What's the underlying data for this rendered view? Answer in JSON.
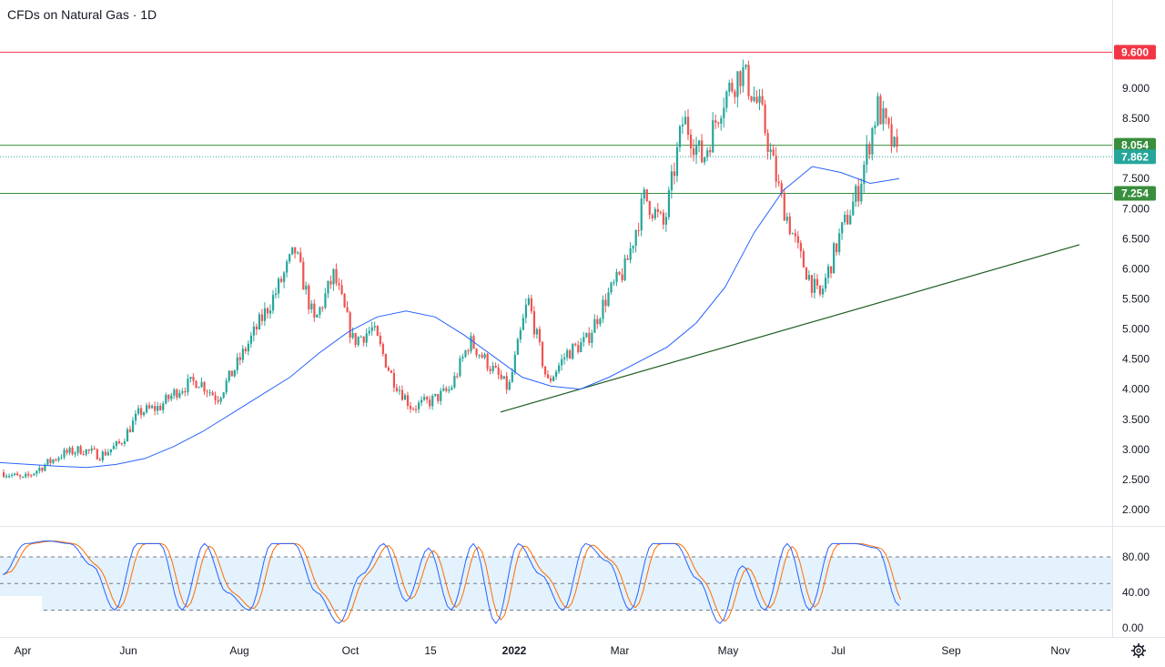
{
  "title": "CFDs on Natural Gas · 1D",
  "price_axis": {
    "ticks": [
      "9.000",
      "8.500",
      "7.500",
      "7.000",
      "6.500",
      "6.000",
      "5.500",
      "5.000",
      "4.500",
      "4.000",
      "3.500",
      "3.000",
      "2.500",
      "2.000"
    ],
    "tick_values": [
      9.0,
      8.5,
      7.5,
      7.0,
      6.5,
      6.0,
      5.5,
      5.0,
      4.5,
      4.0,
      3.5,
      3.0,
      2.5,
      2.0
    ]
  },
  "price_labels": [
    {
      "text": "9.600",
      "value": 9.6,
      "color": "#f23645"
    },
    {
      "text": "8.054",
      "value": 8.054,
      "color": "#388e3c"
    },
    {
      "text": "7.862",
      "value": 7.862,
      "color": "#26a69a"
    },
    {
      "text": "7.254",
      "value": 7.254,
      "color": "#388e3c"
    }
  ],
  "oscillator_axis": {
    "ticks": [
      "80.00",
      "40.00",
      "0.00"
    ],
    "tick_values": [
      80,
      40,
      0
    ],
    "band": [
      20,
      80
    ]
  },
  "time_axis": [
    "Apr",
    "Jun",
    "Aug",
    "Oct",
    "15",
    "2022",
    "Mar",
    "May",
    "Jul",
    "Sep",
    "Nov"
  ],
  "colors": {
    "up": "#26a69a",
    "down": "#ef5350",
    "ma": "#2962ff",
    "resistance": "#f23645",
    "support": "#388e3c",
    "trendline": "#1b5e20",
    "stoch_k": "#2962ff",
    "stoch_d": "#ff6d00",
    "band_fill": "#e3f2fd",
    "grid": "#e0e3eb",
    "axis_text": "#131722"
  },
  "chart_data": {
    "type": "candlestick",
    "instrument": "CFDs on Natural Gas",
    "interval": "1D",
    "ylim": [
      1.8,
      9.7
    ],
    "horizontal_levels": [
      {
        "value": 9.6,
        "color": "red"
      },
      {
        "value": 8.054,
        "color": "green"
      },
      {
        "value": 7.862,
        "color": "teal dotted"
      },
      {
        "value": 7.254,
        "color": "green"
      }
    ],
    "trendline": {
      "from": {
        "t": 0,
        "price": 3.62
      },
      "to": {
        "t": 1,
        "price": 6.4
      }
    },
    "close_series_approx": [
      {
        "t": "Mar",
        "v": 2.62
      },
      {
        "t": "Apr",
        "v": 2.5
      },
      {
        "t": "Apr",
        "v": 2.72
      },
      {
        "t": "May",
        "v": 2.92
      },
      {
        "t": "May",
        "v": 3.0
      },
      {
        "t": "Jun",
        "v": 2.9
      },
      {
        "t": "Jun",
        "v": 3.1
      },
      {
        "t": "Jul",
        "v": 3.62
      },
      {
        "t": "Jul",
        "v": 3.7
      },
      {
        "t": "Aug",
        "v": 4.0
      },
      {
        "t": "Aug",
        "v": 4.15
      },
      {
        "t": "Aug",
        "v": 3.85
      },
      {
        "t": "Sep",
        "v": 4.4
      },
      {
        "t": "Sep",
        "v": 5.0
      },
      {
        "t": "Sep",
        "v": 5.6
      },
      {
        "t": "Oct",
        "v": 6.3
      },
      {
        "t": "Oct",
        "v": 5.1
      },
      {
        "t": "Oct",
        "v": 5.9
      },
      {
        "t": "Nov",
        "v": 4.8
      },
      {
        "t": "Nov",
        "v": 5.0
      },
      {
        "t": "Nov",
        "v": 4.2
      },
      {
        "t": "Dec",
        "v": 3.7
      },
      {
        "t": "Dec",
        "v": 3.8
      },
      {
        "t": "2022",
        "v": 4.0
      },
      {
        "t": "Jan",
        "v": 4.8
      },
      {
        "t": "Jan",
        "v": 4.4
      },
      {
        "t": "Feb",
        "v": 4.0
      },
      {
        "t": "Feb",
        "v": 5.5
      },
      {
        "t": "Feb",
        "v": 4.1
      },
      {
        "t": "Mar",
        "v": 4.6
      },
      {
        "t": "Mar",
        "v": 4.8
      },
      {
        "t": "Mar",
        "v": 5.5
      },
      {
        "t": "Apr",
        "v": 6.0
      },
      {
        "t": "Apr",
        "v": 7.2
      },
      {
        "t": "Apr",
        "v": 6.7
      },
      {
        "t": "May",
        "v": 8.5
      },
      {
        "t": "May",
        "v": 7.8
      },
      {
        "t": "May",
        "v": 8.8
      },
      {
        "t": "Jun",
        "v": 9.3
      },
      {
        "t": "Jun",
        "v": 8.6
      },
      {
        "t": "Jun",
        "v": 7.2
      },
      {
        "t": "Jun",
        "v": 6.2
      },
      {
        "t": "Jul",
        "v": 5.5
      },
      {
        "t": "Jul",
        "v": 6.5
      },
      {
        "t": "Jul",
        "v": 7.3
      },
      {
        "t": "Jul",
        "v": 8.7
      },
      {
        "t": "Aug",
        "v": 7.86
      }
    ],
    "moving_average_approx": [
      2.78,
      2.75,
      2.72,
      2.7,
      2.75,
      2.85,
      3.05,
      3.3,
      3.6,
      3.9,
      4.2,
      4.6,
      4.95,
      5.2,
      5.3,
      5.2,
      4.9,
      4.55,
      4.2,
      4.05,
      4.0,
      4.2,
      4.45,
      4.7,
      5.1,
      5.7,
      6.6,
      7.3,
      7.7,
      7.6,
      7.42,
      7.5
    ],
    "stochastic": {
      "ylim": [
        0,
        100
      ],
      "k_approx": [
        60,
        95,
        98,
        95,
        70,
        20,
        95,
        95,
        20,
        95,
        40,
        20,
        95,
        95,
        40,
        5,
        60,
        95,
        30,
        90,
        20,
        95,
        5,
        95,
        60,
        20,
        95,
        75,
        20,
        95,
        95,
        55,
        5,
        70,
        20,
        95,
        20,
        95,
        95,
        90,
        25
      ]
    }
  }
}
